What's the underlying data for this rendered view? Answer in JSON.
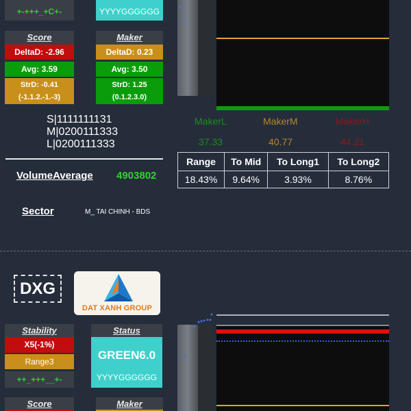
{
  "top": {
    "stability_dots": "+-+++_+C+-",
    "status_letters": "YYYYGGGGGG",
    "score": {
      "header": "Score",
      "deltad": "DeltaD: -2.96",
      "avg": "Avg: 3.59",
      "strd": "StrD: -0.41",
      "strd_detail": "(-1.1.2.-1.-3)"
    },
    "maker": {
      "header": "Maker",
      "deltad": "DeltaD: 0.23",
      "avg": "Avg: 3.50",
      "strd": "StrD: 1.25",
      "strd_detail": "(0.1.2.3.0)"
    },
    "slm": [
      "S|1111111131",
      "M|0200111333",
      "L|0200111333"
    ],
    "volume_label": "VolumeAverage",
    "volume_value": "4903802",
    "sector_label": "Sector",
    "sector_value": "M_ TAI CHINH - BDS",
    "makers": {
      "labels": [
        "MakerL",
        "MakerM",
        "MakerH"
      ],
      "values": [
        "37.33",
        "40.77",
        "44.21"
      ]
    },
    "stats": {
      "headers": [
        "Range",
        "To Mid",
        "To Long1",
        "To Long2"
      ],
      "values": [
        "18.43%",
        "9.64%",
        "3.93%",
        "8.76%"
      ]
    }
  },
  "bottom": {
    "ticker": "DXG",
    "logo_text": "DAT XANH GROUP",
    "stability": {
      "header": "Stability",
      "x5": "X5(-1%)",
      "range": "Range3",
      "dots": "++_+++__+-"
    },
    "status": {
      "header": "Status",
      "value": "GREEN6.0",
      "letters": "YYYYGGGGGG"
    },
    "score_header": "Score",
    "maker_header": "Maker"
  },
  "colors": {
    "background": "#252d3b",
    "red": "#c00d0d",
    "gold": "#c8901a",
    "green": "#0b9c0b",
    "teal": "#3fd0cc",
    "makerL": "#1f8a1f",
    "makerM": "#b8862a",
    "makerH": "#8b1a1a"
  }
}
